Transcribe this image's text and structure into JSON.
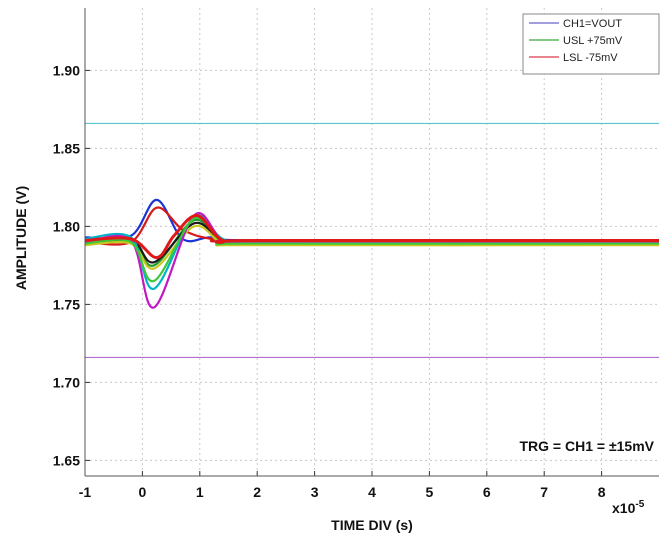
{
  "chart_data": {
    "type": "line",
    "title": "",
    "xlabel": "TIME DIV (s)",
    "ylabel": "AMPLITUDE (V)",
    "x_multiplier_label": "x10",
    "x_multiplier_exponent": "-5",
    "xlim": [
      -1,
      9
    ],
    "ylim": [
      1.64,
      1.94
    ],
    "x_ticks": [
      "-1",
      "0",
      "1",
      "2",
      "3",
      "4",
      "5",
      "6",
      "7",
      "8"
    ],
    "y_ticks": [
      "1.65",
      "1.70",
      "1.75",
      "1.80",
      "1.85",
      "1.90"
    ],
    "grid": true,
    "legend_position": "top-right",
    "legend": [
      {
        "label": "CH1=VOUT",
        "color": "#6b63c9"
      },
      {
        "label": "USL +75mV",
        "color": "#38a838"
      },
      {
        "label": "LSL -75mV",
        "color": "#d93a4a"
      }
    ],
    "limit_lines": [
      {
        "name": "USL",
        "y": 1.866,
        "color": "#5cc3d0"
      },
      {
        "name": "LSL",
        "y": 1.716,
        "color": "#b06fd0"
      }
    ],
    "annotation": "TRG = CH1 = ±15mV",
    "series": [
      {
        "color": "#1a33d6",
        "x": [
          -1,
          -0.2,
          0.25,
          0.7,
          1.2,
          2,
          9
        ],
        "y": [
          1.793,
          1.794,
          1.817,
          1.792,
          1.793,
          1.791,
          1.791
        ]
      },
      {
        "color": "#d61a1a",
        "x": [
          -1,
          -0.2,
          0.25,
          0.7,
          1.2,
          2,
          9
        ],
        "y": [
          1.79,
          1.79,
          1.812,
          1.798,
          1.792,
          1.79,
          1.79
        ]
      },
      {
        "color": "#1f9c2a",
        "x": [
          -1,
          -0.2,
          0.2,
          0.9,
          1.4,
          2,
          9
        ],
        "y": [
          1.789,
          1.79,
          1.775,
          1.804,
          1.79,
          1.789,
          1.789
        ]
      },
      {
        "color": "#1a1a1a",
        "x": [
          -1,
          -0.2,
          0.2,
          0.9,
          1.4,
          2,
          9
        ],
        "y": [
          1.791,
          1.792,
          1.777,
          1.802,
          1.791,
          1.79,
          1.79
        ]
      },
      {
        "color": "#c8c820",
        "x": [
          -1,
          -0.2,
          0.2,
          0.9,
          1.4,
          2,
          9
        ],
        "y": [
          1.788,
          1.789,
          1.773,
          1.8,
          1.789,
          1.788,
          1.788
        ]
      },
      {
        "color": "#00b4c8",
        "x": [
          -1,
          -0.2,
          0.2,
          0.9,
          1.4,
          2,
          9
        ],
        "y": [
          1.792,
          1.793,
          1.76,
          1.806,
          1.792,
          1.791,
          1.791
        ]
      },
      {
        "color": "#c21ac2",
        "x": [
          -1,
          -0.2,
          0.2,
          0.9,
          1.4,
          2,
          9
        ],
        "y": [
          1.79,
          1.791,
          1.748,
          1.807,
          1.791,
          1.79,
          1.79
        ]
      },
      {
        "color": "#3cc83c",
        "x": [
          -1,
          -0.2,
          0.2,
          0.9,
          1.4,
          2,
          9
        ],
        "y": [
          1.789,
          1.79,
          1.765,
          1.805,
          1.79,
          1.789,
          1.789
        ]
      },
      {
        "color": "#e01818",
        "x": [
          -1,
          -0.2,
          0.25,
          0.55,
          0.95,
          1.4,
          2,
          9
        ],
        "y": [
          1.791,
          1.792,
          1.78,
          1.794,
          1.807,
          1.791,
          1.791,
          1.791
        ]
      }
    ]
  }
}
